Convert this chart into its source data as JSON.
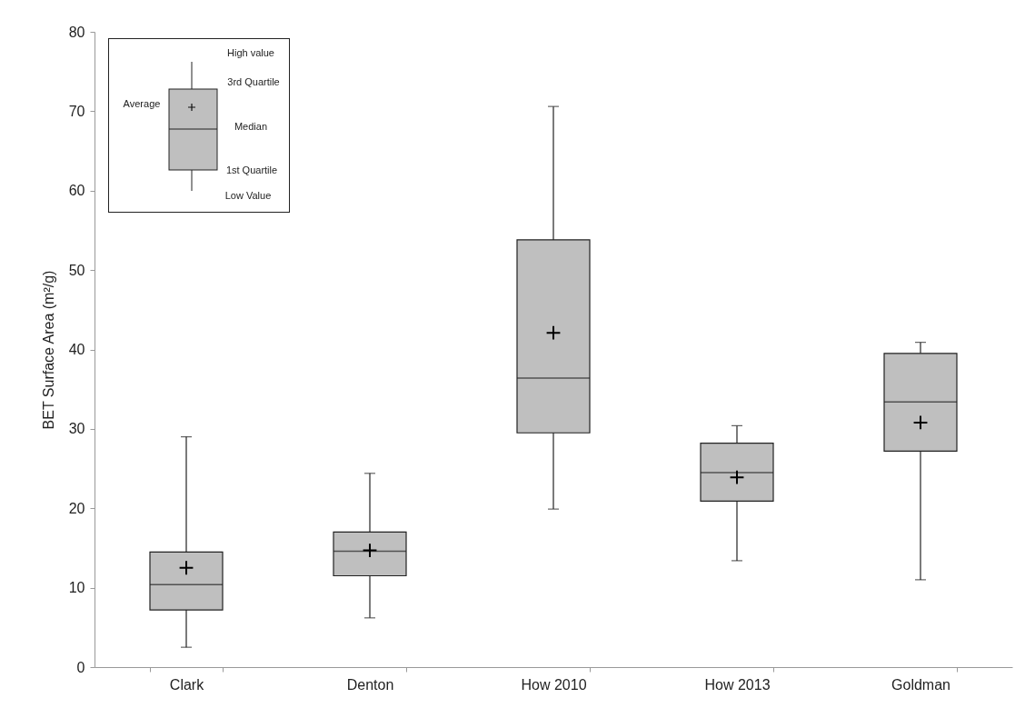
{
  "chart_data": {
    "type": "box",
    "ylabel": "BET Surface Area (m²/g)",
    "categories": [
      "Clark",
      "Denton",
      "How 2010",
      "How 2013",
      "Goldman"
    ],
    "ylim": [
      0,
      80
    ],
    "yticks": [
      0,
      10,
      20,
      30,
      40,
      50,
      60,
      70,
      80
    ],
    "grid": false,
    "annotations": [
      "High value",
      "3rd Quartile",
      "Average",
      "Median",
      "1st Quartile",
      "Low Value"
    ],
    "series": [
      {
        "color": "#bfbfbf",
        "boxes": [
          {
            "low": 2.5,
            "q1": 7.2,
            "median": 10.4,
            "q3": 14.5,
            "high": 29.0,
            "mean": 12.5
          },
          {
            "low": 6.2,
            "q1": 11.5,
            "median": 14.6,
            "q3": 17.0,
            "high": 24.4,
            "mean": 14.7
          },
          {
            "low": 19.9,
            "q1": 29.5,
            "median": 36.4,
            "q3": 53.8,
            "high": 70.6,
            "mean": 42.1
          },
          {
            "low": 13.4,
            "q1": 20.9,
            "median": 24.5,
            "q3": 28.2,
            "high": 30.4,
            "mean": 23.9
          },
          {
            "low": 11.0,
            "q1": 27.2,
            "median": 33.4,
            "q3": 39.5,
            "high": 40.9,
            "mean": 30.8
          }
        ]
      }
    ]
  }
}
